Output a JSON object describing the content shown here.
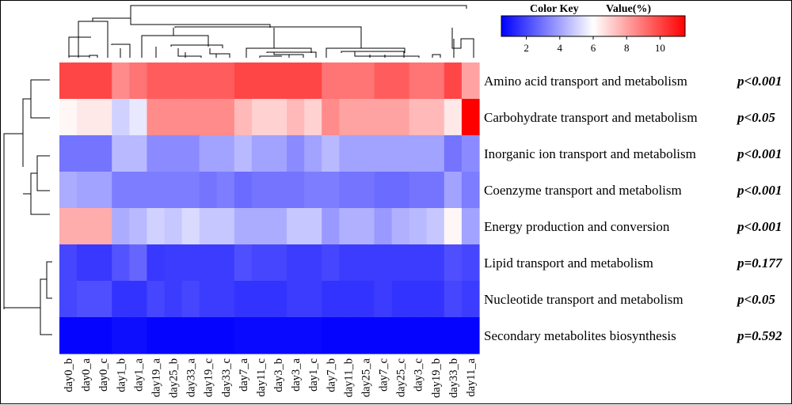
{
  "chart_data": {
    "type": "heatmap",
    "columns": [
      "day0_b",
      "day0_a",
      "day0_c",
      "day1_b",
      "day1_a",
      "day19_a",
      "day25_b",
      "day33_a",
      "day19_c",
      "day33_c",
      "day7_a",
      "day11_c",
      "day3_b",
      "day3_a",
      "day1_c",
      "day7_b",
      "day11_b",
      "day25_a",
      "day7_c",
      "day25_c",
      "day3_c",
      "day19_b",
      "day33_b",
      "day11_a"
    ],
    "rows": [
      {
        "name": "Amino acid transport and metabolism",
        "p": "p<0.001",
        "values": [
          10,
          10,
          10,
          8.5,
          9,
          9.5,
          9.5,
          9.5,
          9.5,
          9.5,
          10,
          10,
          10,
          10,
          10,
          9,
          9,
          9,
          9.5,
          9.5,
          9,
          9,
          10,
          8
        ]
      },
      {
        "name": "Carbohydrate transport and metabolism",
        "p": "p<0.05",
        "values": [
          6.2,
          6.5,
          6.5,
          5,
          5.5,
          8.5,
          8.5,
          8.5,
          8.5,
          8.5,
          7.5,
          7,
          7,
          7.5,
          7,
          8.5,
          8,
          8,
          8,
          8,
          7.5,
          7.5,
          6.5,
          11.5
        ]
      },
      {
        "name": "Inorganic ion transport and metabolism",
        "p": "p<0.001",
        "values": [
          3,
          3,
          3,
          4.5,
          4.5,
          3.5,
          3.5,
          3.5,
          4,
          4,
          4.5,
          4,
          4,
          3.5,
          4,
          4.5,
          4,
          4,
          4,
          4,
          4,
          4,
          3,
          3.5
        ]
      },
      {
        "name": "Coenzyme transport and metabolism",
        "p": "p<0.001",
        "values": [
          4.2,
          4,
          4,
          3.2,
          3.2,
          3.2,
          3.2,
          3.2,
          3,
          3.2,
          2.8,
          3,
          3,
          3,
          3.2,
          3.2,
          3,
          3,
          2.8,
          2.8,
          3,
          3,
          4,
          3.2
        ]
      },
      {
        "name": "Energy production and conversion",
        "p": "p<0.001",
        "values": [
          7.8,
          7.8,
          7.8,
          4.2,
          4.5,
          5,
          4.8,
          5.2,
          4.8,
          4.8,
          4.2,
          4.2,
          4.2,
          4.8,
          4.8,
          3.8,
          4.3,
          4.3,
          3.8,
          4.3,
          4.5,
          4.8,
          6.2,
          4
        ]
      },
      {
        "name": "Lipid transport and metabolism",
        "p": "p=0.177",
        "values": [
          2,
          1.7,
          1.7,
          2.3,
          2.7,
          1.7,
          1.8,
          1.8,
          1.8,
          1.8,
          2.2,
          2,
          2,
          1.8,
          1.8,
          2,
          1.8,
          1.8,
          1.8,
          1.8,
          1.8,
          1.8,
          2.2,
          2
        ]
      },
      {
        "name": "Nucleotide transport and metabolism",
        "p": "p<0.05",
        "values": [
          2,
          2.2,
          2.2,
          1.6,
          1.6,
          2,
          1.8,
          2,
          1.8,
          1.8,
          1.6,
          1.6,
          1.6,
          1.8,
          1.8,
          1.6,
          1.6,
          1.6,
          1.8,
          1.6,
          1.6,
          1.6,
          2,
          1.8
        ]
      },
      {
        "name": "Secondary metabolites biosynthesis",
        "p": "p=0.592",
        "values": [
          0.6,
          0.6,
          0.6,
          0.8,
          0.8,
          0.6,
          0.6,
          0.6,
          0.6,
          0.6,
          0.7,
          0.7,
          0.7,
          0.7,
          0.7,
          0.6,
          0.6,
          0.6,
          0.6,
          0.6,
          0.6,
          0.6,
          0.6,
          0.6
        ]
      }
    ],
    "color_key": {
      "title": "Color Key",
      "value_label": "Value(%)",
      "range": [
        0.5,
        11.5
      ],
      "ticks": [
        "2",
        "4",
        "6",
        "8",
        "10"
      ],
      "tick_values": [
        2,
        4,
        6,
        8,
        10
      ],
      "colors": {
        "low": "#0000ff",
        "mid": "#ffffff",
        "high": "#ff0000"
      }
    }
  }
}
